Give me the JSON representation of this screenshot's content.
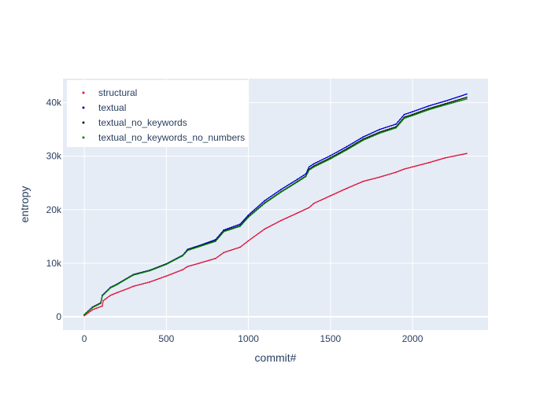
{
  "chart_data": {
    "type": "scatter",
    "title": "",
    "xlabel": "commit#",
    "ylabel": "entropy",
    "xlim": [
      -130,
      2460
    ],
    "ylim": [
      -2500,
      44500
    ],
    "xticks": [
      0,
      500,
      1000,
      1500,
      2000
    ],
    "xtick_labels": [
      "0",
      "500",
      "1000",
      "1500",
      "2000"
    ],
    "yticks": [
      0,
      10000,
      20000,
      30000,
      40000
    ],
    "ytick_labels": [
      "0",
      "10k",
      "20k",
      "30k",
      "40k"
    ],
    "grid": true,
    "legend_position": "top-left",
    "colors": {
      "plot_bg": "#E5ECF6",
      "grid": "#ffffff",
      "text": "#2a3f5f"
    },
    "series": [
      {
        "name": "structural",
        "color": "#DC143C",
        "x": [
          0,
          50,
          110,
          115,
          160,
          200,
          260,
          300,
          400,
          500,
          600,
          630,
          700,
          800,
          850,
          950,
          1000,
          1100,
          1200,
          1300,
          1370,
          1400,
          1500,
          1600,
          1700,
          1800,
          1900,
          1950,
          2000,
          2100,
          2200,
          2330
        ],
        "y": [
          200,
          1300,
          2000,
          3000,
          4000,
          4500,
          5200,
          5700,
          6500,
          7600,
          8800,
          9400,
          10000,
          10900,
          12000,
          13000,
          14200,
          16400,
          18000,
          19400,
          20400,
          21200,
          22600,
          24000,
          25300,
          26100,
          27000,
          27600,
          28000,
          28800,
          29700,
          30500
        ]
      },
      {
        "name": "textual",
        "color": "#0000CD",
        "x": [
          0,
          50,
          100,
          110,
          160,
          200,
          260,
          300,
          400,
          500,
          600,
          630,
          700,
          800,
          850,
          950,
          1000,
          1100,
          1200,
          1300,
          1350,
          1370,
          1400,
          1500,
          1600,
          1700,
          1800,
          1900,
          1950,
          2000,
          2100,
          2200,
          2330
        ],
        "y": [
          400,
          1800,
          2600,
          4000,
          5500,
          6100,
          7200,
          7900,
          8700,
          9900,
          11500,
          12600,
          13300,
          14400,
          16200,
          17300,
          19000,
          21700,
          23800,
          25700,
          26700,
          28000,
          28600,
          30100,
          31800,
          33600,
          35000,
          36000,
          37800,
          38300,
          39400,
          40300,
          41600
        ]
      },
      {
        "name": "textual_no_keywords",
        "color": "#1a1a1a",
        "x": [
          0,
          50,
          100,
          110,
          160,
          200,
          260,
          300,
          400,
          500,
          600,
          630,
          700,
          800,
          850,
          950,
          1000,
          1100,
          1200,
          1300,
          1350,
          1370,
          1400,
          1500,
          1600,
          1700,
          1800,
          1900,
          1950,
          2000,
          2100,
          2200,
          2330
        ],
        "y": [
          400,
          1750,
          2550,
          3950,
          5450,
          6050,
          7150,
          7850,
          8650,
          9850,
          11450,
          12500,
          13200,
          14200,
          16000,
          17000,
          18700,
          21300,
          23400,
          25300,
          26300,
          27600,
          28200,
          29700,
          31400,
          33200,
          34500,
          35500,
          37300,
          37800,
          38900,
          39800,
          41000
        ]
      },
      {
        "name": "textual_no_keywords_no_numbers",
        "color": "#008000",
        "x": [
          0,
          50,
          100,
          110,
          160,
          200,
          260,
          300,
          400,
          500,
          600,
          630,
          700,
          800,
          850,
          950,
          1000,
          1100,
          1200,
          1300,
          1350,
          1370,
          1400,
          1500,
          1600,
          1700,
          1800,
          1900,
          1950,
          2000,
          2100,
          2200,
          2330
        ],
        "y": [
          380,
          1700,
          2500,
          3900,
          5400,
          6000,
          7100,
          7800,
          8600,
          9800,
          11400,
          12400,
          13100,
          14100,
          15900,
          16900,
          18600,
          21200,
          23300,
          25200,
          26200,
          27400,
          28000,
          29500,
          31200,
          33000,
          34300,
          35300,
          37100,
          37600,
          38700,
          39600,
          40700
        ]
      }
    ]
  }
}
